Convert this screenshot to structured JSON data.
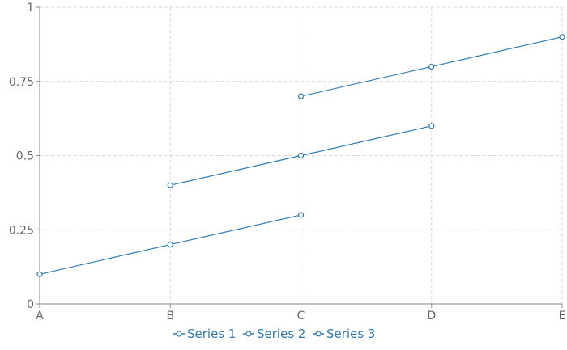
{
  "colors": {
    "series": "#2f7bb5",
    "axis": "#888888",
    "grid": "#d6d6d6",
    "tick_text": "#666666"
  },
  "chart_data": {
    "type": "line",
    "categories": [
      "A",
      "B",
      "C",
      "D",
      "E"
    ],
    "series": [
      {
        "name": "Series 1",
        "values": [
          0.1,
          0.2,
          0.3,
          null,
          null
        ]
      },
      {
        "name": "Series 2",
        "values": [
          null,
          0.4,
          0.5,
          0.6,
          null
        ]
      },
      {
        "name": "Series 3",
        "values": [
          null,
          null,
          0.7,
          0.8,
          0.9
        ]
      }
    ],
    "ylim": [
      0,
      1
    ],
    "yticks": [
      0,
      0.25,
      0.5,
      0.75,
      1
    ],
    "ytick_labels": [
      "0",
      "0.25",
      "0.5",
      "0.75",
      "1"
    ],
    "grid": true,
    "legend_position": "bottom"
  }
}
